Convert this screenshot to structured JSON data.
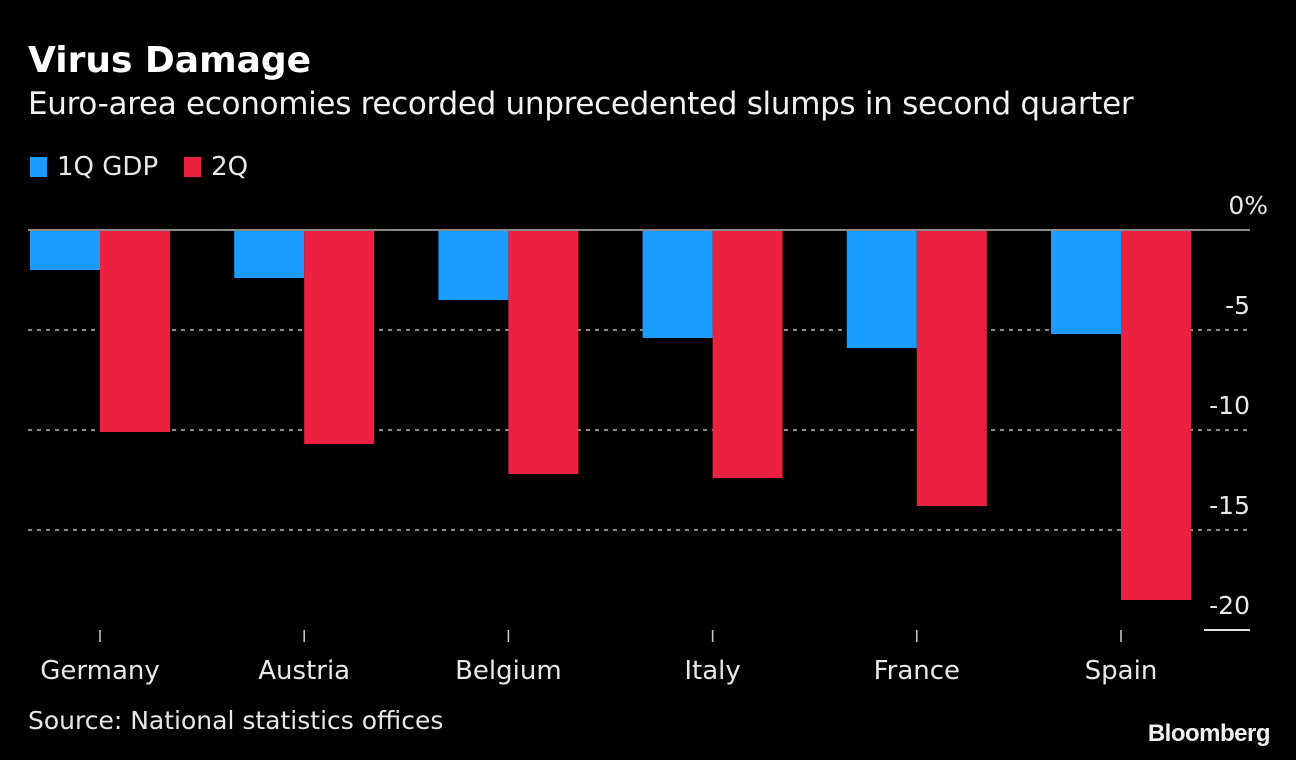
{
  "header": {
    "title": "Virus Damage",
    "subtitle": "Euro-area economies recorded unprecedented slumps in second quarter"
  },
  "legend": [
    {
      "label": "1Q GDP",
      "color": "#1a9dff"
    },
    {
      "label": "2Q",
      "color": "#ec2140"
    }
  ],
  "footer": {
    "source": "Source: National statistics offices",
    "brand": "Bloomberg"
  },
  "chart_data": {
    "type": "bar",
    "title": "Virus Damage",
    "subtitle": "Euro-area economies recorded unprecedented slumps in second quarter",
    "xlabel": "",
    "ylabel": "",
    "categories": [
      "Germany",
      "Austria",
      "Belgium",
      "Italy",
      "France",
      "Spain"
    ],
    "series": [
      {
        "name": "1Q GDP",
        "color": "#1a9dff",
        "values": [
          -2.0,
          -2.4,
          -3.5,
          -5.4,
          -5.9,
          -5.2
        ]
      },
      {
        "name": "2Q",
        "color": "#ec2140",
        "values": [
          -10.1,
          -10.7,
          -12.2,
          -12.4,
          -13.8,
          -18.5
        ]
      }
    ],
    "ylim": [
      -20,
      0
    ],
    "yticks": [
      0,
      -5,
      -10,
      -15,
      -20
    ],
    "ytick_labels": [
      "0%",
      "-5",
      "-10",
      "-15",
      "-20"
    ],
    "y_axis_position": "right",
    "grid": true,
    "grid_style": "dotted",
    "legend_position": "top-left"
  }
}
